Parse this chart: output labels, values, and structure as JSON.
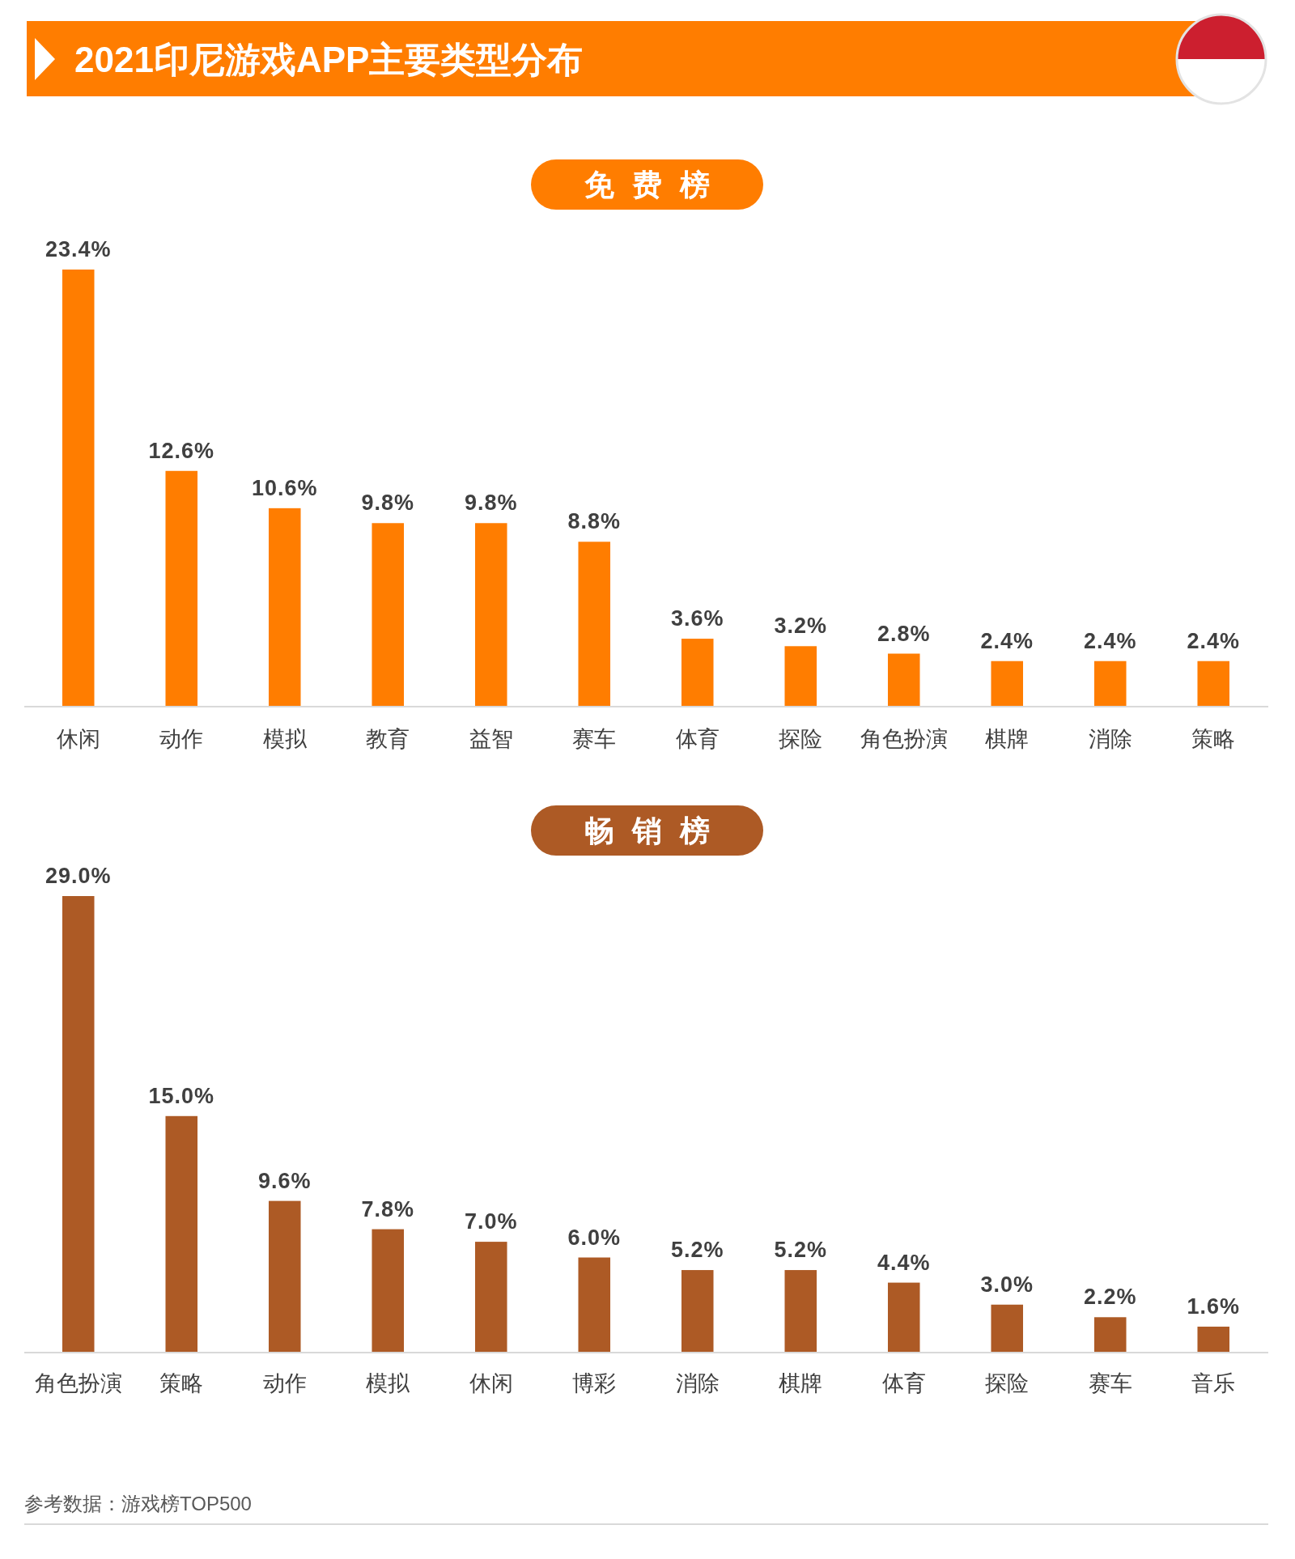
{
  "chart_data": [
    {
      "type": "bar",
      "title": "2021印尼游戏APP主要类型分布",
      "subtitle": "免费榜",
      "color": "#ff7d00",
      "categories": [
        "休闲",
        "动作",
        "模拟",
        "教育",
        "益智",
        "赛车",
        "体育",
        "探险",
        "角色扮演",
        "棋牌",
        "消除",
        "策略"
      ],
      "values": [
        23.4,
        12.6,
        10.6,
        9.8,
        9.8,
        8.8,
        3.6,
        3.2,
        2.8,
        2.4,
        2.4,
        2.4
      ],
      "value_labels": [
        "23.4%",
        "12.6%",
        "10.6%",
        "9.8%",
        "9.8%",
        "8.8%",
        "3.6%",
        "3.2%",
        "2.8%",
        "2.4%",
        "2.4%",
        "2.4%"
      ]
    },
    {
      "type": "bar",
      "subtitle": "畅销榜",
      "color": "#ad5a25",
      "categories": [
        "角色扮演",
        "策略",
        "动作",
        "模拟",
        "休闲",
        "博彩",
        "消除",
        "棋牌",
        "体育",
        "探险",
        "赛车",
        "音乐"
      ],
      "values": [
        29.0,
        15.0,
        9.6,
        7.8,
        7.0,
        6.0,
        5.2,
        5.2,
        4.4,
        3.0,
        2.2,
        1.6
      ],
      "value_labels": [
        "29.0%",
        "15.0%",
        "9.6%",
        "7.8%",
        "7.0%",
        "6.0%",
        "5.2%",
        "5.2%",
        "4.4%",
        "3.0%",
        "2.2%",
        "1.6%"
      ],
      "annotations": [
        "参考数据：游戏榜TOP500"
      ]
    }
  ]
}
